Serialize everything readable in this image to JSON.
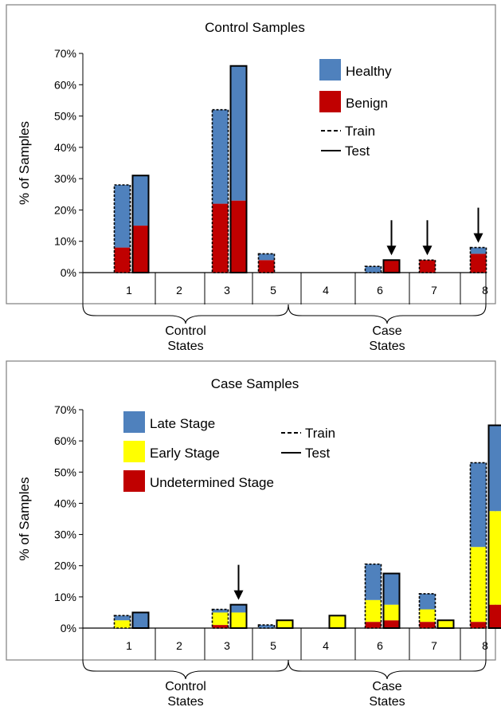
{
  "colors": {
    "healthy": "#4f81bd",
    "benign": "#c00000",
    "late": "#4f81bd",
    "early": "#ffff00",
    "undetermined": "#c00000",
    "frame": "#7f7f7f",
    "arrow": "#000000"
  },
  "chart_data": [
    {
      "type": "bar",
      "title": "Control Samples",
      "ylabel": "% of Samples",
      "ylim": [
        0,
        70
      ],
      "yticks": [
        "0%",
        "10%",
        "20%",
        "30%",
        "40%",
        "50%",
        "60%",
        "70%"
      ],
      "categories": [
        "1",
        "2",
        "3",
        "5",
        "4",
        "6",
        "7",
        "8"
      ],
      "groups": [
        {
          "label_line1": "Control",
          "label_line2": "States",
          "categories": [
            "1",
            "2",
            "3",
            "5"
          ]
        },
        {
          "label_line1": "Case",
          "label_line2": "States",
          "categories": [
            "4",
            "6",
            "7",
            "8"
          ]
        }
      ],
      "legend": {
        "series": [
          {
            "name": "Healthy",
            "color_key": "healthy"
          },
          {
            "name": "Benign",
            "color_key": "benign"
          }
        ],
        "lines": [
          {
            "name": "Train",
            "style": "dashed"
          },
          {
            "name": "Test",
            "style": "solid"
          }
        ],
        "placement": "top-right"
      },
      "series_keys": [
        "benign",
        "healthy"
      ],
      "bars": [
        {
          "category": "1",
          "set": "Train",
          "values": {
            "benign": 8,
            "healthy": 20
          }
        },
        {
          "category": "1",
          "set": "Test",
          "values": {
            "benign": 15,
            "healthy": 16
          }
        },
        {
          "category": "3",
          "set": "Train",
          "values": {
            "benign": 22,
            "healthy": 30
          }
        },
        {
          "category": "3",
          "set": "Test",
          "values": {
            "benign": 23,
            "healthy": 43
          }
        },
        {
          "category": "5",
          "set": "Train",
          "values": {
            "benign": 4,
            "healthy": 2
          }
        },
        {
          "category": "6",
          "set": "Train",
          "values": {
            "benign": 0,
            "healthy": 2
          }
        },
        {
          "category": "6",
          "set": "Test",
          "values": {
            "benign": 4,
            "healthy": 0
          }
        },
        {
          "category": "7",
          "set": "Train",
          "values": {
            "benign": 4,
            "healthy": 0
          }
        },
        {
          "category": "8",
          "set": "Train",
          "values": {
            "benign": 6,
            "healthy": 2
          }
        }
      ],
      "arrows": [
        {
          "category": "6",
          "set": "Test"
        },
        {
          "category": "7",
          "set": "Train"
        },
        {
          "category": "8",
          "set": "Train"
        }
      ]
    },
    {
      "type": "bar",
      "title": "Case Samples",
      "ylabel": "% of Samples",
      "ylim": [
        0,
        70
      ],
      "yticks": [
        "0%",
        "10%",
        "20%",
        "30%",
        "40%",
        "50%",
        "60%",
        "70%"
      ],
      "categories": [
        "1",
        "2",
        "3",
        "5",
        "4",
        "6",
        "7",
        "8"
      ],
      "groups": [
        {
          "label_line1": "Control",
          "label_line2": "States",
          "categories": [
            "1",
            "2",
            "3",
            "5"
          ]
        },
        {
          "label_line1": "Case",
          "label_line2": "States",
          "categories": [
            "4",
            "6",
            "7",
            "8"
          ]
        }
      ],
      "legend": {
        "series": [
          {
            "name": "Late Stage",
            "color_key": "late"
          },
          {
            "name": "Early Stage",
            "color_key": "early"
          },
          {
            "name": "Undetermined Stage",
            "color_key": "undetermined"
          }
        ],
        "lines": [
          {
            "name": "Train",
            "style": "dashed"
          },
          {
            "name": "Test",
            "style": "solid"
          }
        ],
        "placement": "top-left"
      },
      "series_keys": [
        "undetermined",
        "early",
        "late"
      ],
      "bars": [
        {
          "category": "1",
          "set": "Train",
          "values": {
            "undetermined": 0,
            "early": 2.5,
            "late": 1.5
          }
        },
        {
          "category": "1",
          "set": "Test",
          "values": {
            "undetermined": 0,
            "early": 0,
            "late": 5
          }
        },
        {
          "category": "3",
          "set": "Train",
          "values": {
            "undetermined": 1,
            "early": 4,
            "late": 1
          }
        },
        {
          "category": "3",
          "set": "Test",
          "values": {
            "undetermined": 0,
            "early": 5,
            "late": 2.5
          }
        },
        {
          "category": "5",
          "set": "Train",
          "values": {
            "undetermined": 0,
            "early": 0,
            "late": 1
          }
        },
        {
          "category": "5",
          "set": "Test",
          "values": {
            "undetermined": 0,
            "early": 2.5,
            "late": 0
          }
        },
        {
          "category": "4",
          "set": "Test",
          "values": {
            "undetermined": 0,
            "early": 4,
            "late": 0
          }
        },
        {
          "category": "6",
          "set": "Train",
          "values": {
            "undetermined": 2,
            "early": 7,
            "late": 11.5
          }
        },
        {
          "category": "6",
          "set": "Test",
          "values": {
            "undetermined": 2.5,
            "early": 5,
            "late": 10
          }
        },
        {
          "category": "7",
          "set": "Train",
          "values": {
            "undetermined": 2,
            "early": 4,
            "late": 5
          }
        },
        {
          "category": "7",
          "set": "Test",
          "values": {
            "undetermined": 0,
            "early": 2.5,
            "late": 0
          }
        },
        {
          "category": "8",
          "set": "Train",
          "values": {
            "undetermined": 2,
            "early": 24,
            "late": 27
          }
        },
        {
          "category": "8",
          "set": "Test",
          "values": {
            "undetermined": 7.5,
            "early": 30,
            "late": 27.5
          }
        }
      ],
      "arrows": [
        {
          "category": "3",
          "set": "Test"
        }
      ]
    }
  ]
}
